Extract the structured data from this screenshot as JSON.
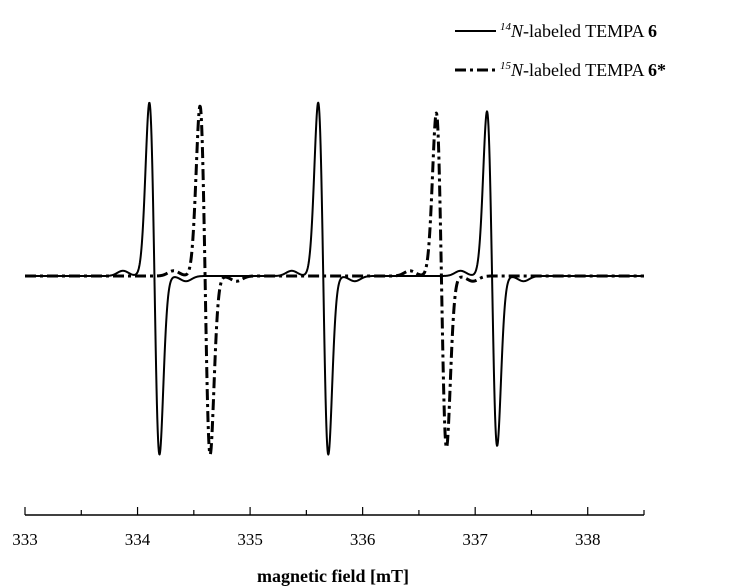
{
  "chart_data": {
    "type": "line",
    "xlabel": "magnetic field [mT]",
    "ylabel": "",
    "xlim": [
      333,
      338.5
    ],
    "ylim": [
      -1.05,
      1.05
    ],
    "xticks": [
      333,
      334,
      335,
      336,
      337,
      338
    ],
    "tick_labels": [
      "333",
      "334",
      "335",
      "336",
      "337",
      "338"
    ],
    "grid": false,
    "legend_position": "top-right",
    "series": [
      {
        "legend_sup": "14",
        "legend_ital": "N",
        "legend_text": "-labeled TEMPA ",
        "legend_bold": "6",
        "style": "solid",
        "lines": [
          {
            "center": 334.15,
            "amp_pos": 1.0,
            "amp_neg": 1.03
          },
          {
            "center": 335.65,
            "amp_pos": 1.0,
            "amp_neg": 1.03
          },
          {
            "center": 337.15,
            "amp_pos": 0.95,
            "amp_neg": 0.98
          }
        ]
      },
      {
        "legend_sup": "15",
        "legend_ital": "N",
        "legend_text": "-labeled TEMPA ",
        "legend_bold": "6*",
        "style": "dashdot",
        "lines": [
          {
            "center": 334.6,
            "amp_pos": 0.98,
            "amp_neg": 1.03
          },
          {
            "center": 336.7,
            "amp_pos": 0.94,
            "amp_neg": 0.99
          }
        ]
      }
    ]
  }
}
